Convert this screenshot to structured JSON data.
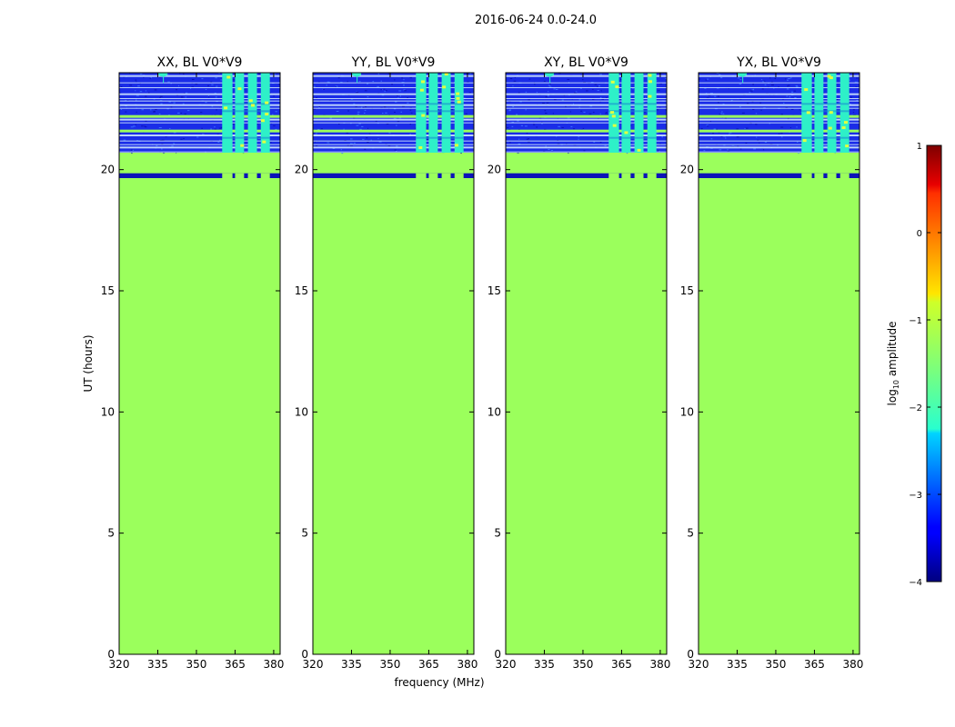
{
  "chart_data": {
    "type": "heatmap",
    "suptitle": "2016-06-24 0.0-24.0",
    "xlabel": "frequency (MHz)",
    "ylabel": "UT (hours)",
    "xlim": [
      320,
      382.5
    ],
    "ylim": [
      0,
      24
    ],
    "xticks": [
      320,
      335,
      350,
      365,
      380
    ],
    "yticks": [
      0,
      5,
      10,
      15,
      20
    ],
    "panels": [
      {
        "title": "XX, BL V0*V9"
      },
      {
        "title": "YY, BL V0*V9"
      },
      {
        "title": "XY, BL V0*V9"
      },
      {
        "title": "YX, BL V0*V9"
      }
    ],
    "fill_value_log10": -1.2,
    "masked_ut_band": [
      19.65,
      19.85
    ],
    "data_ut_range": [
      20.7,
      24.0
    ],
    "data_freq_bands_mhz": [
      [
        360,
        364
      ],
      [
        365,
        368.5
      ],
      [
        370,
        373.5
      ],
      [
        375,
        378.5
      ]
    ],
    "colorbar": {
      "label": "log10 amplitude",
      "label_main": "log",
      "label_sub": "10",
      "label_rest": " amplitude",
      "min": -4,
      "max": 1,
      "ticks": [
        1,
        0,
        -1,
        -2,
        -3,
        -4
      ],
      "tick_labels": [
        "1",
        "0",
        "−1",
        "−2",
        "−3",
        "−4"
      ],
      "colormap": "jet"
    }
  },
  "colors": {
    "fill": "#9bff5c",
    "noise": "#1a2ce8",
    "noise_dark": "#0b13b8",
    "stripe": "#d8f0ff",
    "band_cyan": "#2ef0c8",
    "hot": "#e0ff40"
  }
}
